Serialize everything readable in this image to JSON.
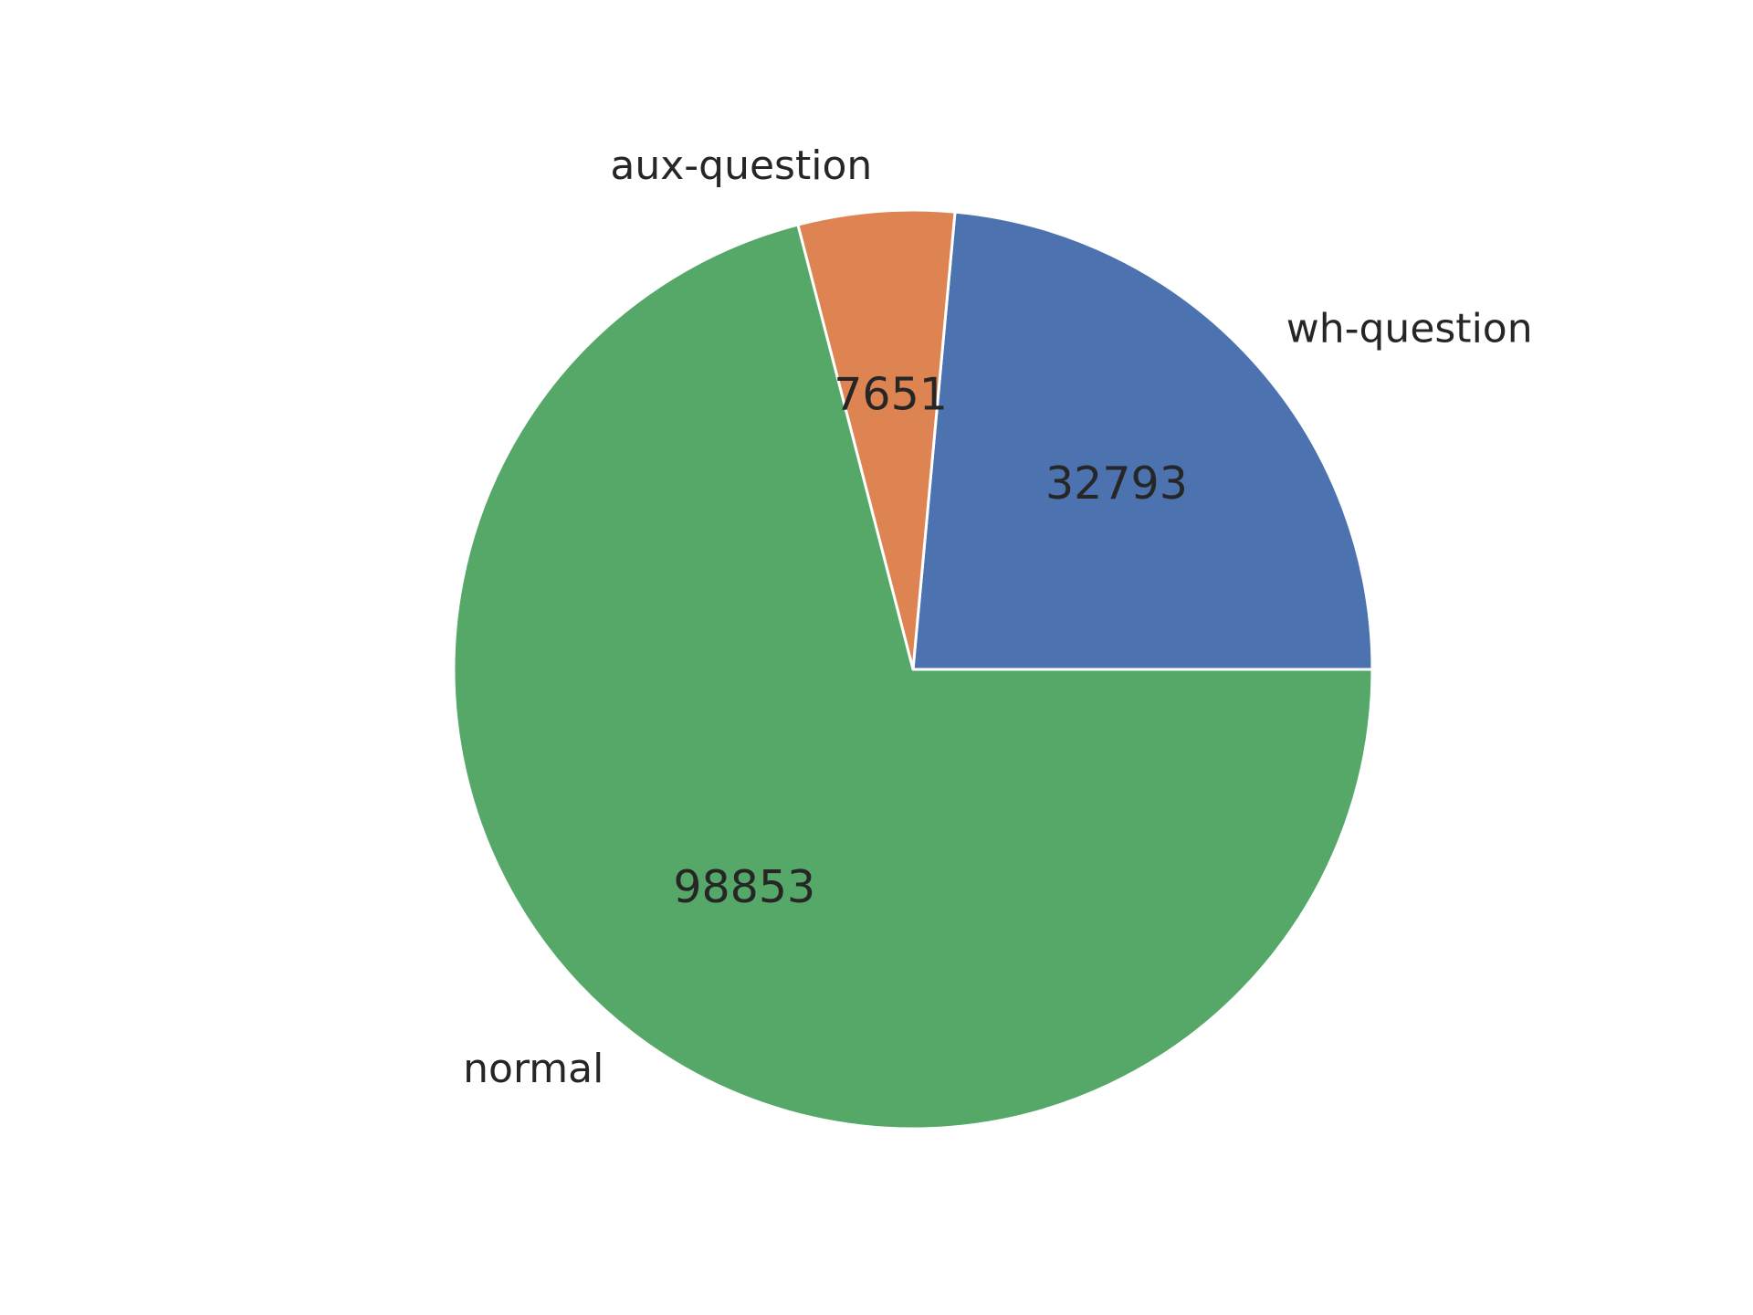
{
  "chart_data": {
    "type": "pie",
    "categories": [
      "wh-question",
      "aux-question",
      "normal"
    ],
    "values": [
      32793,
      7651,
      98853
    ],
    "value_labels": [
      "32793",
      "7651",
      "98853"
    ],
    "colors": [
      "#4c72b0",
      "#dd8452",
      "#55a868"
    ],
    "start_angle_deg": 0,
    "direction": "counterclockwise",
    "title": "",
    "legend": "none"
  }
}
